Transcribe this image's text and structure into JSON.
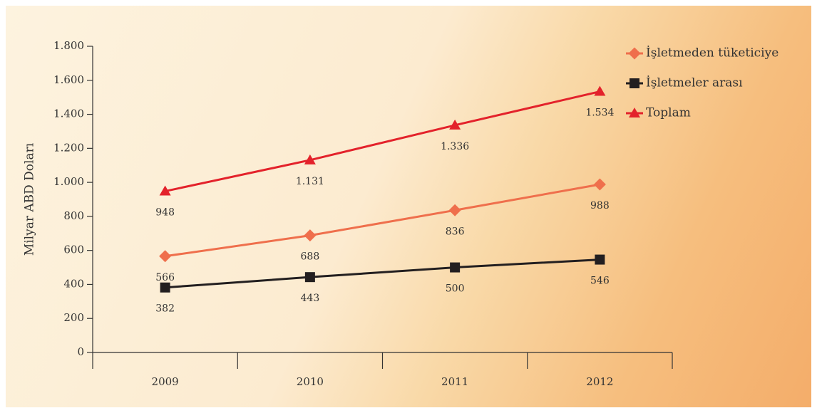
{
  "chart_data": {
    "type": "line",
    "y_axis_label": "Milyar ABD Doları",
    "categories": [
      "2009",
      "2010",
      "2011",
      "2012"
    ],
    "series": [
      {
        "name": "İşletmeden tüketiciye",
        "color": "#ef6f4c",
        "marker": "diamond",
        "values": [
          566,
          688,
          836,
          988
        ]
      },
      {
        "name": "İşletmeler arası",
        "color": "#231f20",
        "marker": "square",
        "values": [
          382,
          443,
          500,
          546
        ]
      },
      {
        "name": "Toplam",
        "color": "#e3222b",
        "marker": "triangle",
        "values": [
          948,
          1131,
          1336,
          1534
        ],
        "value_labels": [
          "948",
          "1.131",
          "1.336",
          "1.534"
        ]
      }
    ],
    "ylim": [
      0,
      1800
    ],
    "yticks": [
      0,
      200,
      400,
      600,
      800,
      {
        "value": 1000,
        "label": "1.000"
      },
      {
        "value": 1200,
        "label": "1.200"
      },
      {
        "value": 1400,
        "label": "1.400"
      },
      {
        "value": 1600,
        "label": "1.600"
      },
      {
        "value": 1800,
        "label": "1.800"
      }
    ],
    "legend": "top-right"
  }
}
